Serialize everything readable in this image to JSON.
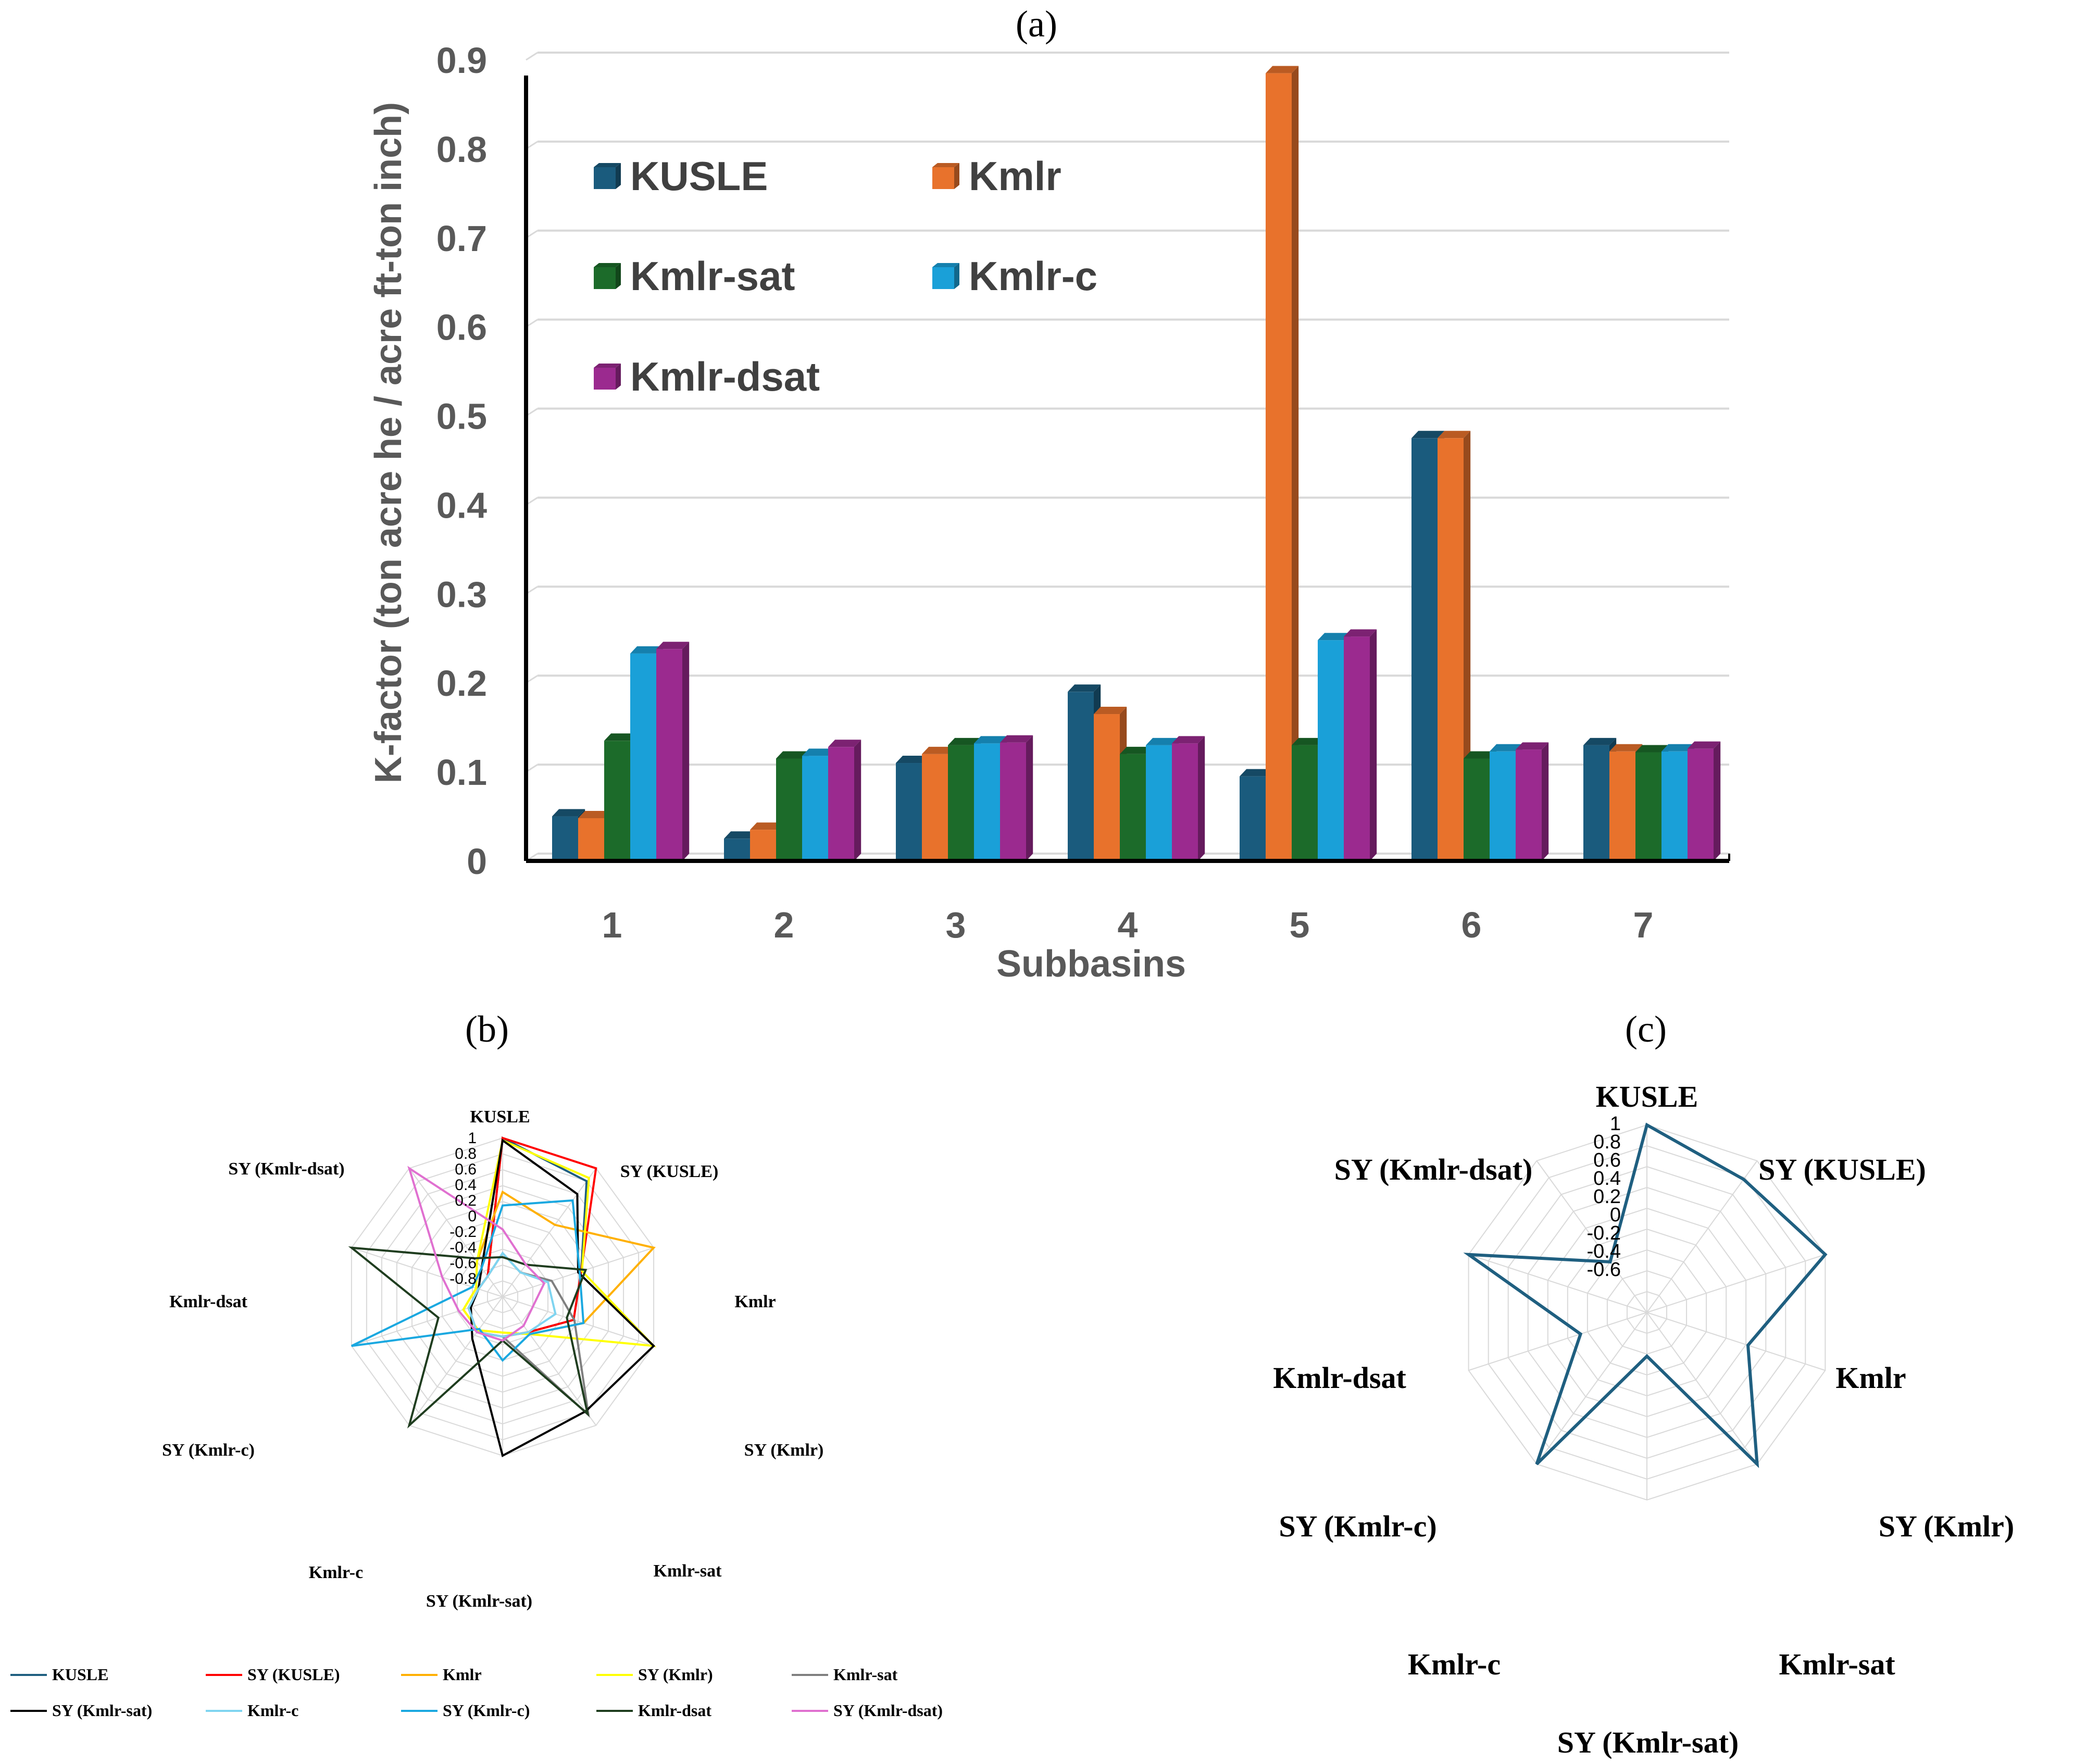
{
  "chart_data": [
    {
      "panel": "(a)",
      "type": "bar",
      "title": "",
      "xlabel": "Subbasins",
      "ylabel": "K-factor (ton acre he / acre ft-ton inch)",
      "ylim": [
        0,
        0.9
      ],
      "yticks": [
        0,
        0.1,
        0.2,
        0.3,
        0.4,
        0.5,
        0.6,
        0.7,
        0.8,
        0.9
      ],
      "ytick_labels": [
        "0",
        "0.1",
        "0.2",
        "0.3",
        "0.4",
        "0.5",
        "0.6",
        "0.7",
        "0.8",
        "0.9"
      ],
      "categories": [
        "1",
        "2",
        "3",
        "4",
        "5",
        "6",
        "7"
      ],
      "grid": true,
      "legend_position": "top-left inside",
      "series": [
        {
          "name": "KUSLE",
          "color": "#1a5b7d",
          "values": [
            0.05,
            0.025,
            0.11,
            0.19,
            0.095,
            0.475,
            0.13
          ]
        },
        {
          "name": "Kmlr",
          "color": "#e8722c",
          "values": [
            0.048,
            0.035,
            0.12,
            0.165,
            0.885,
            0.475,
            0.123
          ]
        },
        {
          "name": "Kmlr-sat",
          "color": "#1c6b2a",
          "values": [
            0.135,
            0.115,
            0.13,
            0.12,
            0.13,
            0.115,
            0.122
          ]
        },
        {
          "name": "Kmlr-c",
          "color": "#1aa0d8",
          "values": [
            0.233,
            0.118,
            0.132,
            0.13,
            0.248,
            0.123,
            0.123
          ]
        },
        {
          "name": "Kmlr-dsat",
          "color": "#9b2a8f",
          "values": [
            0.238,
            0.128,
            0.133,
            0.132,
            0.252,
            0.125,
            0.126
          ]
        }
      ]
    },
    {
      "panel": "(b)",
      "type": "radar",
      "axes": [
        "KUSLE",
        "SY (KUSLE)",
        "Kmlr",
        "SY (Kmlr)",
        "Kmlr-sat",
        "SY (Kmlr-sat)",
        "Kmlr-c",
        "SY (Kmlr-c)",
        "Kmlr-dsat",
        "SY (Kmlr-dsat)"
      ],
      "rlim": [
        -1,
        1
      ],
      "rticks": [
        "1",
        "0.8",
        "0.6",
        "0.4",
        "0.2",
        "0",
        "-0.2",
        "-0.4",
        "-0.6",
        "-0.8"
      ],
      "series": [
        {
          "name": "KUSLE",
          "color": "#1f5f80",
          "values": [
            1.0,
            0.8,
            0.04,
            -0.06,
            -0.45,
            -0.5,
            -0.45,
            -0.55,
            -0.68,
            -0.68
          ]
        },
        {
          "name": "SY (KUSLE)",
          "color": "#ff0000",
          "values": [
            1.0,
            1.0,
            0.04,
            -0.06,
            -0.45,
            -0.5,
            -0.45,
            -0.55,
            -0.68,
            -0.68
          ]
        },
        {
          "name": "Kmlr",
          "color": "#ffb000",
          "values": [
            0.32,
            0.12,
            1.0,
            0.07,
            -0.42,
            -0.55,
            -0.48,
            -0.48,
            -0.65,
            -0.45
          ]
        },
        {
          "name": "SY (Kmlr)",
          "color": "#ffff00",
          "values": [
            0.97,
            0.85,
            0.05,
            1.0,
            -0.42,
            -0.55,
            -0.48,
            -0.48,
            -0.65,
            -0.45
          ]
        },
        {
          "name": "Kmlr-sat",
          "color": "#7f7f7f",
          "values": [
            -0.45,
            -0.62,
            -0.35,
            -0.05,
            0.84,
            -0.5,
            -0.45,
            -0.55,
            -0.68,
            -0.68
          ]
        },
        {
          "name": "SY (Kmlr-sat)",
          "color": "#000000",
          "values": [
            0.97,
            0.6,
            0.0,
            1.0,
            0.78,
            1.0,
            -0.35,
            -0.58,
            -0.68,
            -0.55
          ]
        },
        {
          "name": "Kmlr-c",
          "color": "#7fd4f0",
          "values": [
            -0.45,
            -0.62,
            -0.4,
            -0.3,
            -0.45,
            -0.5,
            -0.45,
            -0.55,
            -0.68,
            -0.68
          ]
        },
        {
          "name": "SY (Kmlr-c)",
          "color": "#1aa8e0",
          "values": [
            0.15,
            0.5,
            0.02,
            0.07,
            -0.42,
            -0.2,
            -0.5,
            1.0,
            -0.6,
            -0.55
          ]
        },
        {
          "name": "Kmlr-dsat",
          "color": "#1f3d1f",
          "values": [
            -0.5,
            -0.5,
            0.1,
            -0.15,
            0.82,
            -0.45,
            1.0,
            -0.15,
            1.0,
            -0.4
          ]
        },
        {
          "name": "SY (Kmlr-dsat)",
          "color": "#e070d0",
          "values": [
            -0.15,
            -0.5,
            -0.45,
            -0.6,
            -0.55,
            -0.45,
            -0.45,
            -0.42,
            -0.2,
            1.0
          ]
        }
      ]
    },
    {
      "panel": "(c)",
      "type": "radar",
      "axes": [
        "KUSLE",
        "SY (KUSLE)",
        "Kmlr",
        "SY (Kmlr)",
        "Kmlr-sat",
        "SY (Kmlr-sat)",
        "Kmlr-c",
        "SY (Kmlr-c)",
        "Kmlr-dsat",
        "SY (Kmlr-dsat)"
      ],
      "rlim": [
        -0.8,
        1
      ],
      "rticks": [
        "1",
        "0.8",
        "0.6",
        "0.4",
        "0.2",
        "0",
        "-0.2",
        "-0.4",
        "-0.6"
      ],
      "series": [
        {
          "name": "KUSLE",
          "color": "#1f5f80",
          "values": [
            1.0,
            0.78,
            1.0,
            0.22,
            1.0,
            -0.38,
            1.0,
            -0.13,
            1.0,
            -0.2
          ]
        }
      ]
    }
  ]
}
